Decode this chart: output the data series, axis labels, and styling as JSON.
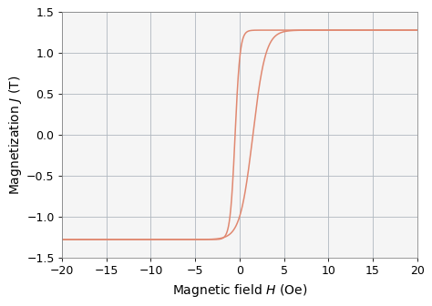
{
  "xlabel": "Magnetic field $H$ (Oe)",
  "ylabel": "Magnetization $J$ (T)",
  "xlim": [
    -20,
    20
  ],
  "ylim": [
    -1.5,
    1.5
  ],
  "xticks": [
    -20,
    -15,
    -10,
    -5,
    0,
    5,
    10,
    15,
    20
  ],
  "yticks": [
    -1.5,
    -1.0,
    -0.5,
    0,
    0.5,
    1.0,
    1.5
  ],
  "line_color": "#e08870",
  "background_color": "#f5f5f5",
  "grid_color": "#b0b8c0",
  "Js": 1.28,
  "k_inner": 1.8,
  "k_outer": 0.7,
  "Hc_inner": -0.5,
  "Hc_outer": 1.5
}
